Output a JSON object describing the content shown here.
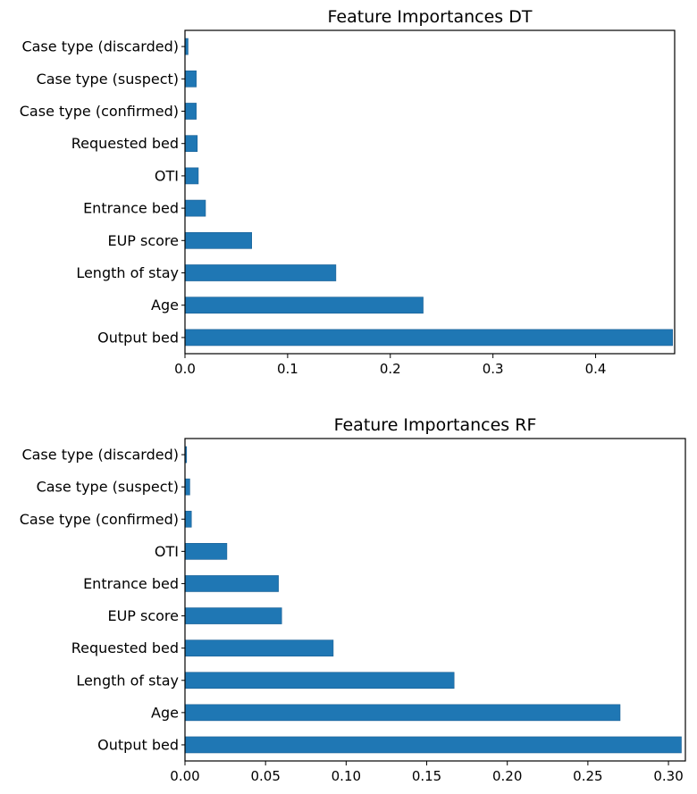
{
  "chart_data": [
    {
      "type": "bar",
      "orientation": "horizontal",
      "title": "Feature Importances DT",
      "xlabel": "",
      "ylabel": "",
      "xlim": [
        0,
        0.477
      ],
      "xticks": [
        "0.0",
        "0.1",
        "0.2",
        "0.3",
        "0.4"
      ],
      "categories": [
        "Output bed",
        "Age",
        "Length of stay",
        "EUP score",
        "Entrance bed",
        "OTI",
        "Requested bed",
        "Case type (confirmed)",
        "Case type (suspect)",
        "Case type (discarded)"
      ],
      "values": [
        0.475,
        0.232,
        0.147,
        0.065,
        0.02,
        0.013,
        0.012,
        0.011,
        0.011,
        0.003
      ],
      "color": "#1f77b4"
    },
    {
      "type": "bar",
      "orientation": "horizontal",
      "title": "Feature Importances RF",
      "xlabel": "",
      "ylabel": "",
      "xlim": [
        0,
        0.3105
      ],
      "xticks": [
        "0.00",
        "0.05",
        "0.10",
        "0.15",
        "0.20",
        "0.25",
        "0.30"
      ],
      "categories": [
        "Output bed",
        "Age",
        "Length of stay",
        "Requested bed",
        "EUP score",
        "Entrance bed",
        "OTI",
        "Case type (confirmed)",
        "Case type (suspect)",
        "Case type (discarded)"
      ],
      "values": [
        0.308,
        0.27,
        0.167,
        0.092,
        0.06,
        0.058,
        0.026,
        0.004,
        0.003,
        0.001
      ],
      "color": "#1f77b4"
    }
  ]
}
